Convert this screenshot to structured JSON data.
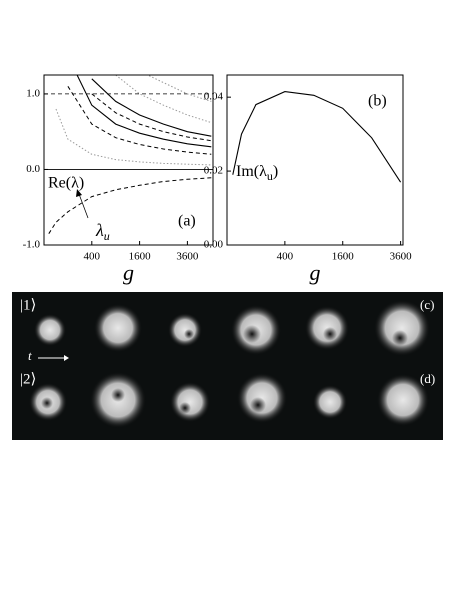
{
  "chart_data": [
    {
      "type": "line",
      "xscale": "sqrt",
      "xlim": [
        0,
        5000
      ],
      "xticks": [
        400,
        1600,
        3600
      ],
      "ylim": [
        -1.0,
        1.25
      ],
      "yticks": [
        {
          "value": -1,
          "label": "-1.0"
        },
        {
          "value": 0,
          "label": "0.0"
        },
        {
          "value": 1,
          "label": "1.0"
        }
      ],
      "x_label": "g",
      "panel_label": "(a)",
      "y_annotation": "Re(λ)",
      "arrow_label": {
        "text": "λ",
        "sub": "u"
      },
      "reference_lines": [
        {
          "y": 1,
          "dash": "dashed"
        },
        {
          "y": 0,
          "dash": "solid"
        }
      ],
      "x": [
        4,
        25,
        100,
        400,
        900,
        1600,
        2500,
        3600,
        4900
      ],
      "series": [
        {
          "color": "#000000",
          "dash": "dashed",
          "values": [
            -0.85,
            -0.7,
            -0.56,
            -0.36,
            -0.27,
            -0.21,
            -0.16,
            -0.13,
            -0.11
          ]
        },
        {
          "color": "#000000",
          "dash": "solid",
          "values": [
            null,
            null,
            1.5,
            0.85,
            0.6,
            0.48,
            0.4,
            0.34,
            0.3
          ]
        },
        {
          "color": "#000000",
          "dash": "solid",
          "values": [
            null,
            null,
            null,
            1.2,
            0.9,
            0.72,
            0.6,
            0.5,
            0.44
          ]
        },
        {
          "color": "#000000",
          "dash": "dashed",
          "values": [
            null,
            null,
            1.1,
            0.6,
            0.42,
            0.33,
            0.27,
            0.23,
            0.2
          ]
        },
        {
          "color": "#000000",
          "dash": "dashed",
          "values": [
            null,
            null,
            null,
            1.0,
            0.75,
            0.6,
            0.5,
            0.43,
            0.38
          ]
        },
        {
          "color": "#999999",
          "dash": "dotted",
          "values": [
            null,
            0.8,
            0.4,
            0.2,
            0.13,
            0.1,
            0.08,
            0.07,
            0.06
          ]
        },
        {
          "color": "#999999",
          "dash": "dotted",
          "values": [
            null,
            null,
            null,
            null,
            1.25,
            1.0,
            0.85,
            0.72,
            0.62
          ]
        },
        {
          "color": "#999999",
          "dash": "dotted",
          "values": [
            null,
            null,
            null,
            null,
            null,
            1.3,
            1.15,
            1.0,
            0.9
          ]
        }
      ]
    },
    {
      "type": "line",
      "xscale": "sqrt",
      "xlim": [
        0,
        3700
      ],
      "xticks": [
        400,
        1600,
        3600
      ],
      "ylim": [
        0,
        0.046
      ],
      "yticks": [
        {
          "value": 0,
          "label": "0.00"
        },
        {
          "value": 0.02,
          "label": "0.02"
        },
        {
          "value": 0.04,
          "label": "0.04"
        }
      ],
      "x_label": "g",
      "panel_label": "(b)",
      "y_annotation": {
        "text": "Im(λ",
        "sub": "u",
        "tail": ")"
      },
      "x": [
        4,
        25,
        100,
        400,
        900,
        1600,
        2500,
        3600
      ],
      "series": [
        {
          "color": "#000000",
          "dash": "solid",
          "values": [
            0.019,
            0.03,
            0.038,
            0.0415,
            0.0405,
            0.037,
            0.029,
            0.017
          ]
        }
      ]
    }
  ],
  "image_panel": {
    "row_labels": [
      "|1⟩",
      "|2⟩"
    ],
    "panel_labels": [
      "(c)",
      "(d)"
    ],
    "time_label": "t"
  }
}
